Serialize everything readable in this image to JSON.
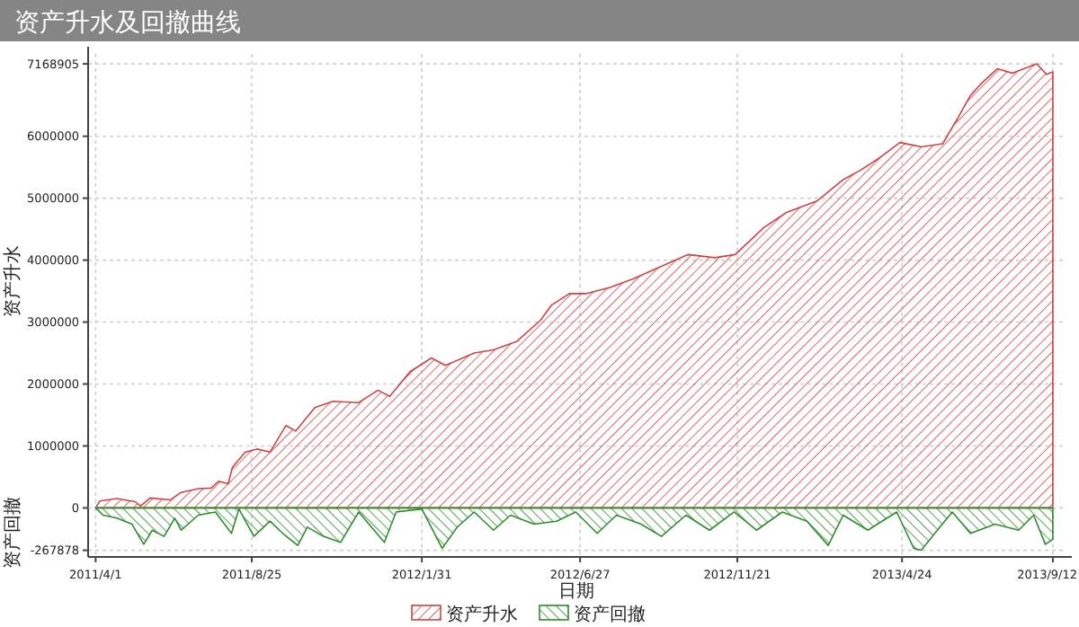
{
  "chart_data": [
    {
      "type": "area",
      "title": "资产升水及回撤曲线",
      "ylabel": "资产升水",
      "grid": true,
      "legend": "bottom",
      "tick_labels": "y",
      "xlim": [
        "2011-03-25",
        "2013-09-23"
      ],
      "ylim": [
        0,
        7330000
      ],
      "xticks": [
        {
          "value": "2011-04-01",
          "label": null
        },
        {
          "value": "2011-08-25",
          "label": null
        },
        {
          "value": "2012-01-31",
          "label": null
        },
        {
          "value": "2012-06-27",
          "label": null
        },
        {
          "value": "2012-11-21",
          "label": null
        },
        {
          "value": "2013-04-24",
          "label": null
        },
        {
          "value": "2013-09-12",
          "label": null
        }
      ],
      "yticks": [
        1000000,
        2000000,
        3000000,
        4000000,
        5000000,
        6000000,
        7168905
      ],
      "x": [
        "2011-04-01",
        "2011-04-05",
        "2011-04-21",
        "2011-05-08",
        "2011-05-13",
        "2011-05-22",
        "2011-06-10",
        "2011-06-20",
        "2011-07-06",
        "2011-07-18",
        "2011-07-25",
        "2011-08-03",
        "2011-08-07",
        "2011-08-19",
        "2011-08-30",
        "2011-09-11",
        "2011-09-26",
        "2011-10-05",
        "2011-10-23",
        "2011-11-09",
        "2011-12-03",
        "2011-12-21",
        "2012-01-01",
        "2012-01-20",
        "2012-02-09",
        "2012-02-22",
        "2012-03-20",
        "2012-04-07",
        "2012-04-29",
        "2012-05-21",
        "2012-05-31",
        "2012-06-17",
        "2012-07-03",
        "2012-07-25",
        "2012-08-16",
        "2012-09-11",
        "2012-10-06",
        "2012-10-31",
        "2012-11-19",
        "2012-12-16",
        "2013-01-06",
        "2013-02-04",
        "2013-02-28",
        "2013-03-16",
        "2013-04-02",
        "2013-04-22",
        "2013-05-12",
        "2013-06-01",
        "2013-06-16",
        "2013-06-27",
        "2013-07-07",
        "2013-07-22",
        "2013-08-05",
        "2013-08-28",
        "2013-09-06",
        "2013-09-12"
      ],
      "series": [
        {
          "name": "资产升水",
          "color": "#cc4444",
          "values": [
            0,
            110000,
            150000,
            100000,
            30000,
            160000,
            130000,
            250000,
            310000,
            320000,
            430000,
            390000,
            660000,
            900000,
            950000,
            900000,
            1330000,
            1240000,
            1620000,
            1720000,
            1700000,
            1900000,
            1800000,
            2200000,
            2420000,
            2300000,
            2500000,
            2550000,
            2690000,
            3030000,
            3270000,
            3460000,
            3460000,
            3560000,
            3700000,
            3900000,
            4090000,
            4040000,
            4090000,
            4530000,
            4770000,
            4960000,
            5300000,
            5450000,
            5640000,
            5900000,
            5830000,
            5880000,
            6320000,
            6660000,
            6850000,
            7090000,
            7020000,
            7168905,
            7000000,
            7040000
          ]
        }
      ]
    },
    {
      "type": "area",
      "ylabel": "资产回撤",
      "xlabel": "日期",
      "grid": true,
      "legend": "bottom",
      "xlim": [
        "2011-03-25",
        "2013-09-23"
      ],
      "ylim": [
        -310000,
        0
      ],
      "xticks": [
        {
          "value": "2011-04-01",
          "label": "2011/4/1"
        },
        {
          "value": "2011-08-25",
          "label": "2011/8/25"
        },
        {
          "value": "2012-01-31",
          "label": "2012/1/31"
        },
        {
          "value": "2012-06-27",
          "label": "2012/6/27"
        },
        {
          "value": "2012-11-21",
          "label": "2012/11/21"
        },
        {
          "value": "2013-04-24",
          "label": "2013/4/24"
        },
        {
          "value": "2013-09-12",
          "label": "2013/9/12"
        }
      ],
      "yticks": [
        0,
        -267878
      ],
      "x": [
        "2011-04-01",
        "2011-04-08",
        "2011-04-21",
        "2011-05-05",
        "2011-05-16",
        "2011-05-24",
        "2011-06-04",
        "2011-06-14",
        "2011-06-20",
        "2011-07-06",
        "2011-07-22",
        "2011-08-06",
        "2011-08-13",
        "2011-08-27",
        "2011-09-11",
        "2011-09-23",
        "2011-10-07",
        "2011-10-16",
        "2011-10-31",
        "2011-11-16",
        "2011-12-03",
        "2011-12-27",
        "2012-01-07",
        "2012-01-31",
        "2012-02-19",
        "2012-03-04",
        "2012-03-20",
        "2012-04-07",
        "2012-04-23",
        "2012-05-15",
        "2012-06-05",
        "2012-06-23",
        "2012-07-13",
        "2012-07-31",
        "2012-08-23",
        "2012-09-11",
        "2012-10-04",
        "2012-10-26",
        "2012-11-18",
        "2012-12-09",
        "2013-01-02",
        "2013-01-25",
        "2013-02-14",
        "2013-02-28",
        "2013-03-23",
        "2013-04-19",
        "2013-05-05",
        "2013-05-12",
        "2013-05-27",
        "2013-06-10",
        "2013-06-27",
        "2013-07-20",
        "2013-08-11",
        "2013-08-25",
        "2013-09-05",
        "2013-09-12"
      ],
      "series": [
        {
          "name": "资产回撤",
          "color": "#2e8b2e",
          "values": [
            0,
            -46000,
            -65000,
            -103000,
            -230000,
            -141000,
            -180000,
            -65000,
            -141000,
            -46000,
            -26000,
            -161000,
            -7000,
            -180000,
            -84000,
            -161000,
            -237000,
            -122000,
            -180000,
            -218000,
            -26000,
            -218000,
            -26000,
            -7000,
            -256000,
            -122000,
            -26000,
            -141000,
            -46000,
            -103000,
            -84000,
            -26000,
            -161000,
            -46000,
            -103000,
            -180000,
            -46000,
            -141000,
            -26000,
            -141000,
            -26000,
            -84000,
            -237000,
            -46000,
            -141000,
            -26000,
            -256000,
            -267878,
            -141000,
            -26000,
            -161000,
            -103000,
            -141000,
            -46000,
            -230000,
            -199000
          ]
        }
      ]
    }
  ]
}
